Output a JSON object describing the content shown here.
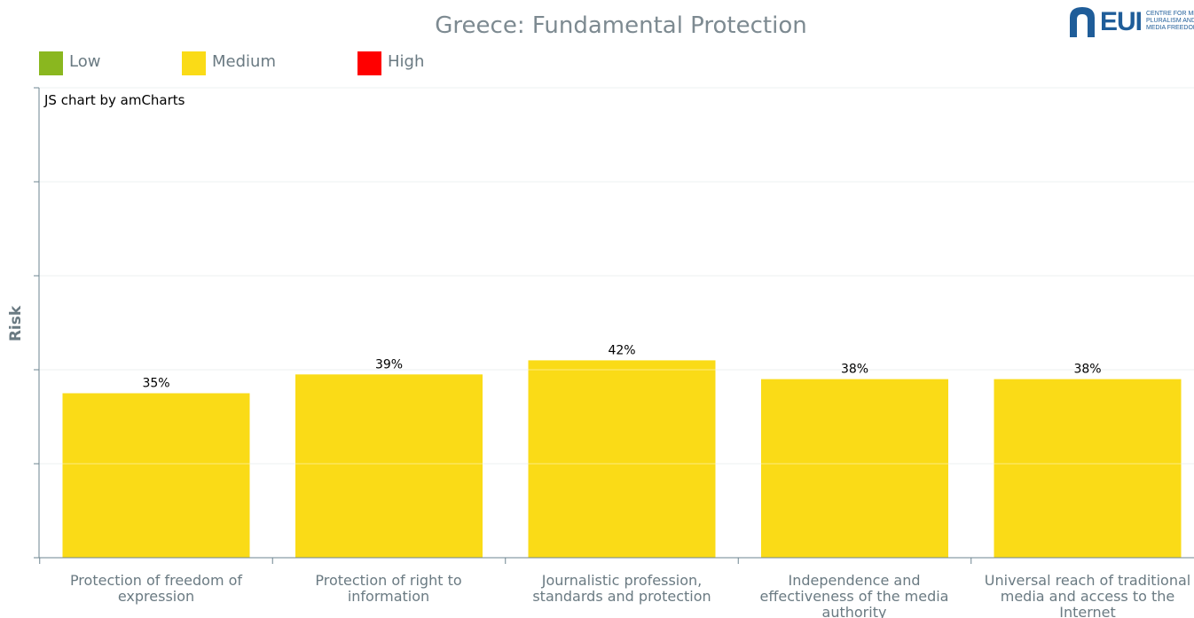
{
  "title": "Greece: Fundamental Protection",
  "credit": "JS chart by amCharts",
  "logo": {
    "text": "EUI",
    "subtext": "CENTRE FOR MEDIA\nPLURALISM AND\nMEDIA FREEDOM",
    "color": "#1f5d99"
  },
  "legend": [
    {
      "label": "Low",
      "color": "#8ab71f"
    },
    {
      "label": "Medium",
      "color": "#fadb17"
    },
    {
      "label": "High",
      "color": "#ff0000"
    }
  ],
  "chart_data": {
    "type": "bar",
    "title": "Greece: Fundamental Protection",
    "ylabel": "Risk",
    "xlabel": "",
    "ylim": [
      0,
      100
    ],
    "grid": true,
    "legend_position": "top-left",
    "categories": [
      "Protection of freedom of expression",
      "Protection of right to information",
      "Journalistic profession, standards and protection",
      "Independence and effectiveness of the media authority",
      "Universal reach of traditional media and access to the Internet"
    ],
    "values": [
      35,
      39,
      42,
      38,
      38
    ],
    "data_labels": [
      "35%",
      "39%",
      "42%",
      "38%",
      "38%"
    ],
    "bar_color": "#fadb17"
  }
}
